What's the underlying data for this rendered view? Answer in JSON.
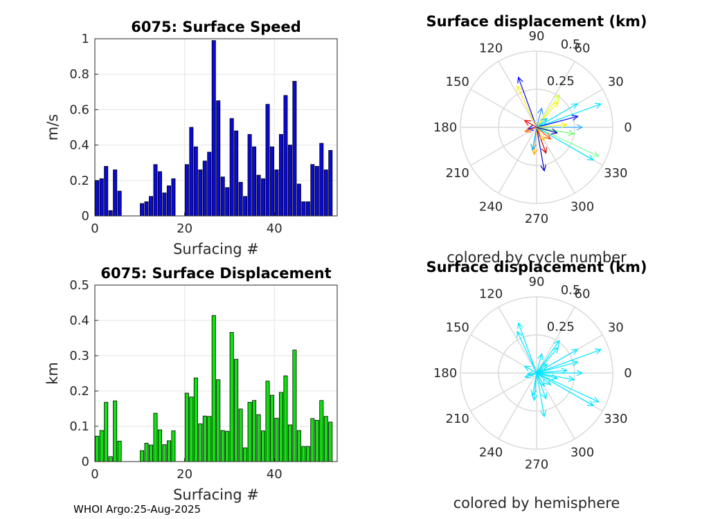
{
  "footer": "WHOI Argo:25-Aug-2025",
  "colors": {
    "speed_bar": "#0a0ad6",
    "disp_bar": "#13e013",
    "grid": "#e3e3e3",
    "axis": "#262626",
    "polar_grid": "#d9d9d9",
    "hemisphere_arrow": "#00e5ff"
  },
  "chart_data": [
    {
      "type": "bar",
      "title": "6075: Surface Speed",
      "xlabel": "Surfacing #",
      "ylabel": "m/s",
      "xlim": [
        0,
        54
      ],
      "ylim": [
        0,
        1
      ],
      "xticks": [
        "0",
        "20",
        "40"
      ],
      "yticks": [
        "0",
        "0.2",
        "0.4",
        "0.6",
        "0.8",
        "1"
      ],
      "x": [
        0,
        1,
        2,
        3,
        4,
        5,
        10,
        11,
        12,
        13,
        14,
        15,
        16,
        17,
        20,
        21,
        22,
        23,
        24,
        25,
        26,
        27,
        28,
        29,
        30,
        31,
        32,
        33,
        34,
        35,
        36,
        37,
        38,
        39,
        40,
        41,
        42,
        43,
        44,
        45,
        46,
        47,
        48,
        49,
        50,
        51,
        52
      ],
      "values": [
        0.2,
        0.21,
        0.28,
        0.03,
        0.26,
        0.14,
        0.07,
        0.08,
        0.11,
        0.29,
        0.25,
        0.13,
        0.17,
        0.21,
        0.29,
        0.5,
        0.39,
        0.26,
        0.31,
        0.36,
        0.99,
        0.65,
        0.22,
        0.16,
        0.55,
        0.48,
        0.19,
        0.11,
        0.46,
        0.39,
        0.23,
        0.21,
        0.63,
        0.39,
        0.26,
        0.46,
        0.68,
        0.4,
        0.76,
        0.18,
        0.08,
        0.08,
        0.29,
        0.28,
        0.41,
        0.26,
        0.37
      ]
    },
    {
      "type": "bar",
      "title": "6075: Surface Displacement",
      "xlabel": "Surfacing #",
      "ylabel": "km",
      "xlim": [
        0,
        54
      ],
      "ylim": [
        0,
        0.5
      ],
      "xticks": [
        "0",
        "20",
        "40"
      ],
      "yticks": [
        "0",
        "0.1",
        "0.2",
        "0.3",
        "0.4",
        "0.5"
      ],
      "x": [
        0,
        1,
        2,
        3,
        4,
        5,
        10,
        11,
        12,
        13,
        14,
        15,
        16,
        17,
        20,
        21,
        22,
        23,
        24,
        25,
        26,
        27,
        28,
        29,
        30,
        31,
        32,
        33,
        34,
        35,
        36,
        37,
        38,
        39,
        40,
        41,
        42,
        43,
        44,
        45,
        46,
        47,
        48,
        49,
        50,
        51,
        52
      ],
      "values": [
        0.072,
        0.088,
        0.168,
        0.014,
        0.172,
        0.058,
        0.031,
        0.052,
        0.047,
        0.137,
        0.09,
        0.048,
        0.059,
        0.087,
        0.194,
        0.183,
        0.237,
        0.107,
        0.129,
        0.128,
        0.414,
        0.232,
        0.088,
        0.086,
        0.366,
        0.29,
        0.149,
        0.039,
        0.168,
        0.173,
        0.133,
        0.087,
        0.228,
        0.188,
        0.123,
        0.196,
        0.243,
        0.104,
        0.316,
        0.088,
        0.043,
        0.043,
        0.122,
        0.117,
        0.173,
        0.128,
        0.112
      ]
    },
    {
      "type": "polar",
      "title": "Surface displacement (km)",
      "subtitle": "colored by cycle number",
      "rmax": 0.5,
      "rticks": [
        "0.25",
        "0.5"
      ],
      "angle_labels": [
        "0",
        "30",
        "60",
        "90",
        "120",
        "150",
        "180",
        "210",
        "240",
        "270",
        "300",
        "330"
      ],
      "vectors": [
        {
          "angle": 20,
          "r": 0.45,
          "color": "#00e5ff"
        },
        {
          "angle": -25,
          "r": 0.45,
          "color": "#7cfc9a"
        },
        {
          "angle": -30,
          "r": 0.43,
          "color": "#00e5ff"
        },
        {
          "angle": 55,
          "r": 0.26,
          "color": "#ccff33"
        },
        {
          "angle": 50,
          "r": 0.22,
          "color": "#ffee00"
        },
        {
          "angle": 110,
          "r": 0.35,
          "color": "#0000ff"
        },
        {
          "angle": 115,
          "r": 0.3,
          "color": "#ffee00"
        },
        {
          "angle": -80,
          "r": 0.29,
          "color": "#0000cc"
        },
        {
          "angle": -95,
          "r": 0.18,
          "color": "#ffaa00"
        },
        {
          "angle": -70,
          "r": 0.18,
          "color": "#cc0000"
        },
        {
          "angle": 0,
          "r": 0.3,
          "color": "#33aaff"
        },
        {
          "angle": -10,
          "r": 0.25,
          "color": "#66ff66"
        },
        {
          "angle": 15,
          "r": 0.28,
          "color": "#0000ff"
        },
        {
          "angle": 30,
          "r": 0.31,
          "color": "#00e5ff"
        },
        {
          "angle": 5,
          "r": 0.2,
          "color": "#ffee00"
        },
        {
          "angle": -40,
          "r": 0.12,
          "color": "#ff4400"
        },
        {
          "angle": 150,
          "r": 0.09,
          "color": "#ff0000"
        },
        {
          "angle": -100,
          "r": 0.15,
          "color": "#00aaff"
        },
        {
          "angle": 75,
          "r": 0.13,
          "color": "#3399ff"
        },
        {
          "angle": -60,
          "r": 0.1,
          "color": "#ffcc00"
        },
        {
          "angle": 190,
          "r": 0.06,
          "color": "#0000ff"
        },
        {
          "angle": 200,
          "r": 0.08,
          "color": "#ff6600"
        },
        {
          "angle": 40,
          "r": 0.09,
          "color": "#00ccff"
        },
        {
          "angle": -15,
          "r": 0.14,
          "color": "#0000aa"
        }
      ]
    },
    {
      "type": "polar",
      "title": "Surface displacement (km)",
      "subtitle": "colored by hemisphere",
      "rmax": 0.5,
      "rticks": [
        "0.25",
        "0.5"
      ],
      "angle_labels": [
        "0",
        "30",
        "60",
        "90",
        "120",
        "150",
        "180",
        "210",
        "240",
        "270",
        "300",
        "330"
      ],
      "vectors": [
        {
          "angle": 20,
          "r": 0.45
        },
        {
          "angle": -25,
          "r": 0.45
        },
        {
          "angle": -30,
          "r": 0.43
        },
        {
          "angle": 55,
          "r": 0.26
        },
        {
          "angle": 50,
          "r": 0.22
        },
        {
          "angle": 110,
          "r": 0.35
        },
        {
          "angle": 115,
          "r": 0.3
        },
        {
          "angle": -80,
          "r": 0.29
        },
        {
          "angle": -95,
          "r": 0.18
        },
        {
          "angle": -70,
          "r": 0.18
        },
        {
          "angle": 0,
          "r": 0.3
        },
        {
          "angle": -10,
          "r": 0.25
        },
        {
          "angle": 15,
          "r": 0.28
        },
        {
          "angle": 30,
          "r": 0.31
        },
        {
          "angle": 5,
          "r": 0.2
        },
        {
          "angle": -40,
          "r": 0.12
        },
        {
          "angle": 150,
          "r": 0.09
        },
        {
          "angle": -100,
          "r": 0.15
        },
        {
          "angle": 75,
          "r": 0.13
        },
        {
          "angle": -60,
          "r": 0.1
        },
        {
          "angle": 190,
          "r": 0.06
        },
        {
          "angle": 200,
          "r": 0.08
        },
        {
          "angle": 40,
          "r": 0.09
        },
        {
          "angle": -15,
          "r": 0.14
        }
      ]
    }
  ]
}
